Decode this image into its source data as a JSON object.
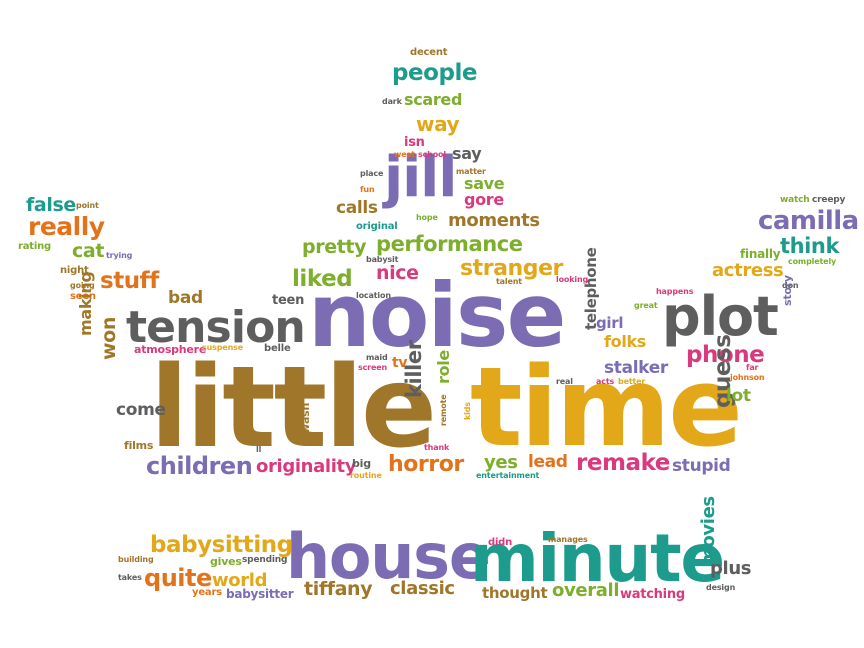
{
  "colors": {
    "purple": "#7b6cb3",
    "gold": "#e3a81a",
    "brown": "#a0772a",
    "gray": "#5e5e5e",
    "green": "#2e9d6a",
    "teal": "#1d9b8c",
    "orange": "#e2731b",
    "pink": "#d93a7d",
    "olive": "#7dae2c"
  },
  "words": [
    {
      "text": "noise",
      "color": "purple"
    },
    {
      "text": "little",
      "color": "brown"
    },
    {
      "text": "time",
      "color": "gold"
    },
    {
      "text": "house",
      "color": "purple"
    },
    {
      "text": "minute",
      "color": "teal"
    },
    {
      "text": "plot",
      "color": "gray"
    },
    {
      "text": "tension",
      "color": "gray"
    },
    {
      "text": "jill",
      "color": "purple"
    },
    {
      "text": "camilla",
      "color": "purple"
    },
    {
      "text": "people",
      "color": "teal"
    },
    {
      "text": "scared",
      "color": "olive"
    },
    {
      "text": "way",
      "color": "gold"
    },
    {
      "text": "decent",
      "color": "brown"
    },
    {
      "text": "dark",
      "color": "gray"
    },
    {
      "text": "isn",
      "color": "pink"
    },
    {
      "text": "west",
      "color": "orange"
    },
    {
      "text": "school",
      "color": "pink"
    },
    {
      "text": "say",
      "color": "gray"
    },
    {
      "text": "matter",
      "color": "brown"
    },
    {
      "text": "place",
      "color": "gray"
    },
    {
      "text": "fun",
      "color": "orange"
    },
    {
      "text": "save",
      "color": "olive"
    },
    {
      "text": "gore",
      "color": "pink"
    },
    {
      "text": "calls",
      "color": "brown"
    },
    {
      "text": "hope",
      "color": "olive"
    },
    {
      "text": "original",
      "color": "teal"
    },
    {
      "text": "moments",
      "color": "brown"
    },
    {
      "text": "performance",
      "color": "olive"
    },
    {
      "text": "pretty",
      "color": "olive"
    },
    {
      "text": "babysit",
      "color": "gray"
    },
    {
      "text": "stranger",
      "color": "gold"
    },
    {
      "text": "liked",
      "color": "olive"
    },
    {
      "text": "nice",
      "color": "pink"
    },
    {
      "text": "talent",
      "color": "brown"
    },
    {
      "text": "looking",
      "color": "pink"
    },
    {
      "text": "location",
      "color": "gray"
    },
    {
      "text": "teen",
      "color": "gray"
    },
    {
      "text": "false",
      "color": "teal"
    },
    {
      "text": "point",
      "color": "brown"
    },
    {
      "text": "really",
      "color": "orange"
    },
    {
      "text": "rating",
      "color": "olive"
    },
    {
      "text": "cat",
      "color": "olive"
    },
    {
      "text": "trying",
      "color": "purple"
    },
    {
      "text": "night",
      "color": "brown"
    },
    {
      "text": "going",
      "color": "brown"
    },
    {
      "text": "stuff",
      "color": "orange"
    },
    {
      "text": "seen",
      "color": "orange"
    },
    {
      "text": "bad",
      "color": "brown"
    },
    {
      "text": "making",
      "color": "brown"
    },
    {
      "text": "won",
      "color": "brown"
    },
    {
      "text": "atmosphere",
      "color": "pink"
    },
    {
      "text": "suspense",
      "color": "gold"
    },
    {
      "text": "belle",
      "color": "gray"
    },
    {
      "text": "maid",
      "color": "gray"
    },
    {
      "text": "screen",
      "color": "pink"
    },
    {
      "text": "tv",
      "color": "orange"
    },
    {
      "text": "killer",
      "color": "gray"
    },
    {
      "text": "role",
      "color": "olive"
    },
    {
      "text": "come",
      "color": "gray"
    },
    {
      "text": "films",
      "color": "brown"
    },
    {
      "text": "ll",
      "color": "gray"
    },
    {
      "text": "wasn",
      "color": "brown"
    },
    {
      "text": "remote",
      "color": "brown"
    },
    {
      "text": "kids",
      "color": "gold"
    },
    {
      "text": "thank",
      "color": "pink"
    },
    {
      "text": "children",
      "color": "purple"
    },
    {
      "text": "originality",
      "color": "pink"
    },
    {
      "text": "big",
      "color": "gray"
    },
    {
      "text": "routine",
      "color": "gold"
    },
    {
      "text": "horror",
      "color": "orange"
    },
    {
      "text": "yes",
      "color": "olive"
    },
    {
      "text": "lead",
      "color": "orange"
    },
    {
      "text": "remake",
      "color": "pink"
    },
    {
      "text": "stupid",
      "color": "purple"
    },
    {
      "text": "entertainment",
      "color": "teal"
    },
    {
      "text": "telephone",
      "color": "gray"
    },
    {
      "text": "girl",
      "color": "purple"
    },
    {
      "text": "folks",
      "color": "gold"
    },
    {
      "text": "stalker",
      "color": "purple"
    },
    {
      "text": "real",
      "color": "gray"
    },
    {
      "text": "acts",
      "color": "pink"
    },
    {
      "text": "better",
      "color": "gold"
    },
    {
      "text": "phone",
      "color": "pink"
    },
    {
      "text": "guess",
      "color": "gray"
    },
    {
      "text": "lot",
      "color": "olive"
    },
    {
      "text": "johnson",
      "color": "orange"
    },
    {
      "text": "far",
      "color": "pink"
    },
    {
      "text": "great",
      "color": "olive"
    },
    {
      "text": "happens",
      "color": "pink"
    },
    {
      "text": "don",
      "color": "gray"
    },
    {
      "text": "story",
      "color": "purple"
    },
    {
      "text": "actress",
      "color": "gold"
    },
    {
      "text": "completely",
      "color": "olive"
    },
    {
      "text": "finally",
      "color": "olive"
    },
    {
      "text": "think",
      "color": "teal"
    },
    {
      "text": "watch",
      "color": "olive"
    },
    {
      "text": "creepy",
      "color": "gray"
    },
    {
      "text": "babysitting",
      "color": "gold"
    },
    {
      "text": "building",
      "color": "brown"
    },
    {
      "text": "gives",
      "color": "olive"
    },
    {
      "text": "spending",
      "color": "gray"
    },
    {
      "text": "takes",
      "color": "gray"
    },
    {
      "text": "quite",
      "color": "orange"
    },
    {
      "text": "world",
      "color": "gold"
    },
    {
      "text": "years",
      "color": "orange"
    },
    {
      "text": "babysitter",
      "color": "purple"
    },
    {
      "text": "tiffany",
      "color": "brown"
    },
    {
      "text": "classic",
      "color": "brown"
    },
    {
      "text": "didn",
      "color": "pink"
    },
    {
      "text": "manages",
      "color": "brown"
    },
    {
      "text": "thought",
      "color": "brown"
    },
    {
      "text": "overall",
      "color": "olive"
    },
    {
      "text": "watching",
      "color": "pink"
    },
    {
      "text": "movies",
      "color": "teal"
    },
    {
      "text": "plus",
      "color": "gray"
    },
    {
      "text": "design",
      "color": "gray"
    }
  ]
}
